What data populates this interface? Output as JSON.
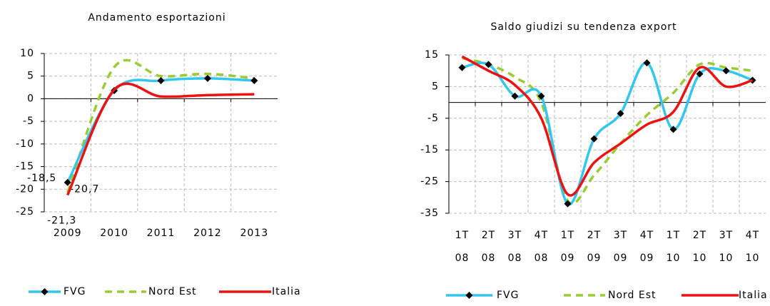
{
  "chart_data": [
    {
      "type": "line",
      "title": "Andamento esportazioni",
      "categories": [
        "2009",
        "2010",
        "2011",
        "2012",
        "2013"
      ],
      "series": [
        {
          "name": "FVG",
          "color": "#33c7f0",
          "values": [
            -18.5,
            1.8,
            4,
            4.5,
            4
          ],
          "value_labels": [
            "-18,5",
            null,
            null,
            null,
            null
          ]
        },
        {
          "name": "Nord Est",
          "color": "#99cc33",
          "values": [
            -20.7,
            7,
            5,
            5.5,
            4.5
          ],
          "value_labels": [
            "-20,7",
            null,
            null,
            null,
            null
          ]
        },
        {
          "name": "Italia",
          "color": "#ee1111",
          "values": [
            -21.3,
            2,
            0.5,
            0.8,
            1
          ],
          "value_labels": [
            "-21,3",
            null,
            null,
            null,
            null
          ]
        }
      ],
      "ylim": [
        -25,
        10
      ],
      "yticks": [
        -25,
        -20,
        -15,
        -10,
        -5,
        0,
        5,
        10
      ],
      "grid": true,
      "legend": "bottom"
    },
    {
      "type": "line",
      "title": "Saldo giudizi su tendenza export",
      "categories": [
        [
          "1T",
          "08"
        ],
        [
          "2T",
          "08"
        ],
        [
          "3T",
          "08"
        ],
        [
          "4T",
          "08"
        ],
        [
          "1T",
          "09"
        ],
        [
          "2T",
          "09"
        ],
        [
          "3T",
          "09"
        ],
        [
          "4T",
          "09"
        ],
        [
          "1T",
          "10"
        ],
        [
          "2T",
          "10"
        ],
        [
          "3T",
          "10"
        ],
        [
          "4T",
          "10"
        ]
      ],
      "series": [
        {
          "name": "FVG",
          "color": "#33c7f0",
          "values": [
            11,
            12,
            2,
            2,
            -32,
            -11.5,
            -3.5,
            12.5,
            -8.5,
            9,
            10,
            7
          ]
        },
        {
          "name": "Nord Est",
          "color": "#99cc33",
          "values": [
            14,
            12,
            8,
            0,
            -31,
            -23,
            -13,
            -4,
            3,
            12,
            11,
            10
          ]
        },
        {
          "name": "Italia",
          "color": "#ee1111",
          "values": [
            14.5,
            10,
            5.5,
            -5,
            -29,
            -19,
            -13,
            -7,
            -3,
            11,
            5,
            7
          ]
        }
      ],
      "ylim": [
        -35,
        15
      ],
      "yticks": [
        -35,
        -25,
        -15,
        -5,
        5,
        15
      ],
      "grid": true,
      "legend": "bottom"
    }
  ]
}
